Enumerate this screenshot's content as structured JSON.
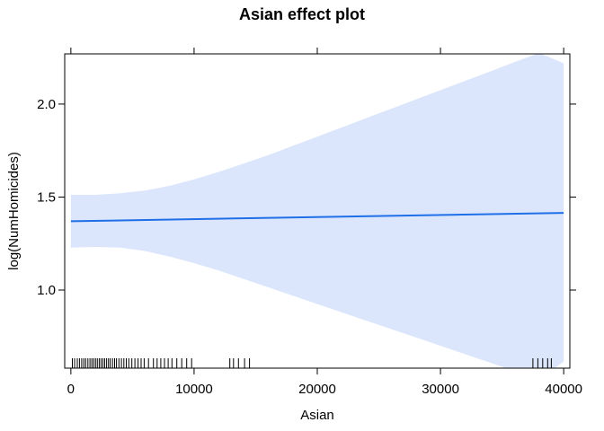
{
  "chart_data": {
    "type": "line",
    "title": "Asian effect plot",
    "xlabel": "Asian",
    "ylabel": "log(NumHomicides)",
    "xlim": [
      -500,
      40500
    ],
    "ylim": [
      0.58,
      2.27
    ],
    "x_ticks": [
      0,
      10000,
      20000,
      30000,
      40000
    ],
    "x_tick_labels": [
      "0",
      "10000",
      "20000",
      "30000",
      "40000"
    ],
    "y_ticks": [
      1.0,
      1.5,
      2.0
    ],
    "y_tick_labels": [
      "1.0",
      "1.5",
      "2.0"
    ],
    "grid": false,
    "colors": {
      "line": "#1f6fe8",
      "band": "#dbe6fd",
      "axis": "#000000"
    },
    "series": [
      {
        "x": [
          0,
          40000
        ],
        "y": [
          1.37,
          1.415
        ]
      }
    ],
    "confidence_band": {
      "x": [
        0,
        2000,
        4000,
        6000,
        8000,
        10000,
        12000,
        14000,
        16000,
        18000,
        20000,
        22000,
        24000,
        26000,
        28000,
        30000,
        32000,
        34000,
        36000,
        38000,
        40000
      ],
      "upper": [
        1.512,
        1.512,
        1.52,
        1.535,
        1.56,
        1.595,
        1.635,
        1.68,
        1.725,
        1.775,
        1.825,
        1.875,
        1.925,
        1.975,
        2.025,
        2.075,
        2.125,
        2.175,
        2.225,
        2.275,
        2.22
      ],
      "lower": [
        1.228,
        1.232,
        1.228,
        1.21,
        1.18,
        1.145,
        1.105,
        1.06,
        1.015,
        0.97,
        0.925,
        0.88,
        0.835,
        0.79,
        0.745,
        0.7,
        0.655,
        0.61,
        0.565,
        0.52,
        0.615
      ]
    },
    "rug": [
      120,
      300,
      520,
      700,
      880,
      1050,
      1200,
      1380,
      1550,
      1700,
      1850,
      2000,
      2150,
      2300,
      2450,
      2600,
      2750,
      2900,
      3050,
      3200,
      3380,
      3550,
      3700,
      3900,
      4100,
      4300,
      4500,
      4700,
      4950,
      5200,
      5450,
      5700,
      5950,
      6300,
      6700,
      7000,
      7300,
      7600,
      7900,
      8200,
      8600,
      9000,
      9400,
      9800,
      12900,
      13200,
      13600,
      14100,
      14500,
      37500,
      37900,
      38300,
      38700,
      39000
    ]
  }
}
